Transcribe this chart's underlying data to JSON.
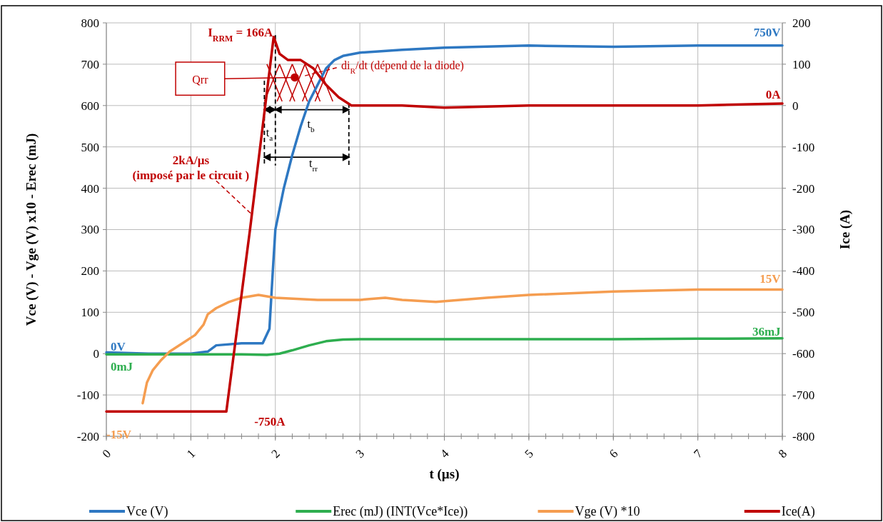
{
  "chart_data": {
    "type": "line",
    "xlabel": "t (µs)",
    "ylabel": "Vce (V) - Vge (V) x10 - Erec (mJ)",
    "y2label": "Ice (A)",
    "xlim": [
      0,
      8
    ],
    "xticks": [
      0,
      1,
      2,
      3,
      4,
      5,
      6,
      7,
      8
    ],
    "ylim": [
      -200,
      800
    ],
    "yticks": [
      -200,
      -100,
      0,
      100,
      200,
      300,
      400,
      500,
      600,
      700,
      800
    ],
    "y2lim": [
      -800,
      200
    ],
    "y2ticks": [
      -800,
      -700,
      -600,
      -500,
      -400,
      -300,
      -200,
      -100,
      0,
      100,
      200
    ],
    "grid": true,
    "legend": "bottom",
    "line_style": "solid",
    "marker": "none",
    "series": [
      {
        "name": "Vce (V)",
        "color": "#2e78c2",
        "x": [
          0,
          0.5,
          1,
          1.2,
          1.3,
          1.6,
          1.85,
          1.93,
          1.97,
          2.0,
          2.1,
          2.2,
          2.3,
          2.4,
          2.5,
          2.6,
          2.7,
          2.8,
          3.0,
          3.5,
          4,
          5,
          6,
          7,
          8
        ],
        "values": [
          3,
          0,
          0,
          5,
          20,
          25,
          25,
          60,
          200,
          300,
          400,
          480,
          550,
          610,
          650,
          690,
          710,
          720,
          728,
          735,
          740,
          745,
          742,
          745,
          745
        ]
      },
      {
        "name": "Erec (mJ) (INT(Vce*Ice))",
        "color": "#2eae4f",
        "x": [
          0,
          1,
          1.6,
          1.9,
          2.05,
          2.2,
          2.4,
          2.6,
          2.8,
          3.0,
          4,
          5,
          6,
          7,
          8
        ],
        "values": [
          -2,
          -2,
          -2,
          -3,
          0,
          8,
          20,
          30,
          34,
          35,
          35,
          35,
          35,
          36,
          37
        ]
      },
      {
        "name": "Vge (V) *10",
        "color": "#f59d50",
        "x": [
          0.43,
          0.48,
          0.55,
          0.65,
          0.75,
          0.9,
          1.05,
          1.15,
          1.2,
          1.3,
          1.45,
          1.6,
          1.8,
          2.0,
          2.5,
          3.0,
          3.3,
          3.5,
          3.9,
          4.5,
          5,
          6,
          7,
          8
        ],
        "values": [
          -120,
          -70,
          -40,
          -15,
          5,
          25,
          45,
          70,
          95,
          110,
          125,
          135,
          142,
          135,
          130,
          130,
          135,
          130,
          125,
          135,
          142,
          150,
          155,
          155
        ]
      },
      {
        "name": "Ice(A)",
        "color": "#c00000",
        "axis": "y2",
        "x": [
          0,
          0.5,
          1,
          1.42,
          1.7,
          1.98,
          2.05,
          2.15,
          2.3,
          2.45,
          2.6,
          2.75,
          2.9,
          3.5,
          4,
          5,
          6,
          7,
          8
        ],
        "values": [
          -740,
          -740,
          -740,
          -740,
          -300,
          166,
          125,
          110,
          110,
          90,
          50,
          20,
          0,
          0,
          -5,
          0,
          0,
          0,
          5
        ]
      }
    ],
    "annotations": [
      "I$_{RRM}$ = 166A",
      "750V",
      "0A",
      "15V",
      "36mJ",
      "0V",
      "0mJ",
      "-15V",
      "-750A",
      "Qrr",
      "di$_{R}$/dt (dépend de la diode)",
      "2kA/µs",
      {
        "text": "(imposé par le circuit )",
        "x": 1.72,
        "y": 337
      },
      "t$_{a}$",
      "t$_{b}$",
      "t$_{rr}$"
    ]
  }
}
